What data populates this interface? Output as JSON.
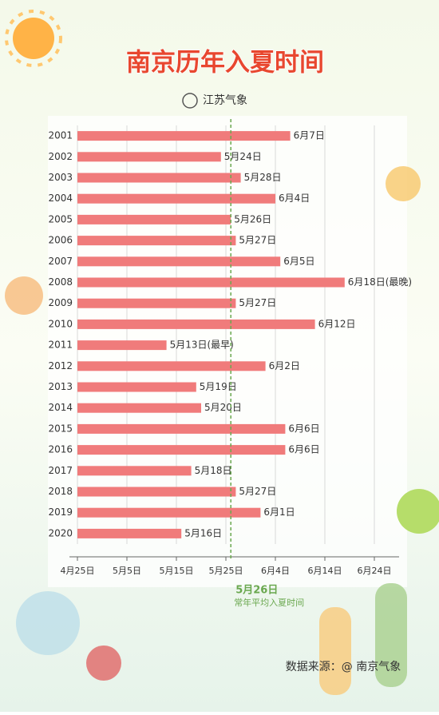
{
  "chart_data": {
    "type": "bar",
    "orientation": "horizontal",
    "title": "南京历年入夏时间",
    "subtitle": "江苏气象",
    "categories": [
      "2001",
      "2002",
      "2003",
      "2004",
      "2005",
      "2006",
      "2007",
      "2008",
      "2009",
      "2010",
      "2011",
      "2012",
      "2013",
      "2014",
      "2015",
      "2016",
      "2017",
      "2018",
      "2019",
      "2020"
    ],
    "values": [
      158,
      144,
      148,
      155,
      146,
      147,
      156,
      169,
      147,
      163,
      133,
      153,
      139,
      140,
      157,
      157,
      138,
      147,
      152,
      136
    ],
    "value_labels": [
      "6月7日",
      "5月24日",
      "5月28日",
      "6月4日",
      "5月26日",
      "5月27日",
      "6月5日",
      "6月18日(最晚)",
      "5月27日",
      "6月12日",
      "5月13日(最早)",
      "6月2日",
      "5月19日",
      "5月20日",
      "6月6日",
      "6月6日",
      "5月18日",
      "5月27日",
      "6月1日",
      "5月16日"
    ],
    "color": "#f07b7b",
    "xlim": [
      115,
      180
    ],
    "xticks": [
      {
        "value": 115,
        "label": "4月25日"
      },
      {
        "value": 125,
        "label": "5月5日"
      },
      {
        "value": 135,
        "label": "5月15日"
      },
      {
        "value": 145,
        "label": "5月25日"
      },
      {
        "value": 155,
        "label": "6月4日"
      },
      {
        "value": 165,
        "label": "6月14日"
      },
      {
        "value": 175,
        "label": "6月24日"
      }
    ],
    "grid": true,
    "reference_line": {
      "value": 146,
      "label": "5月26日",
      "text": "常年平均入夏时间",
      "color": "#6aa84f"
    },
    "source": "数据来源：@ 南京气象"
  }
}
